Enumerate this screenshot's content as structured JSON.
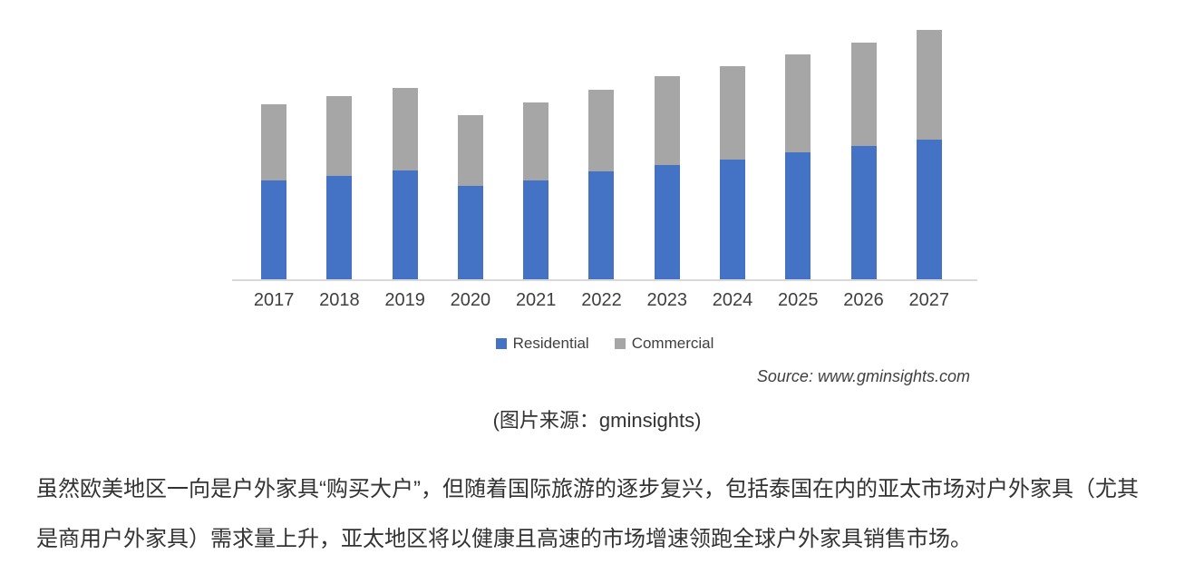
{
  "page": {
    "background": "#ffffff",
    "caption": "(图片来源：gminsights)",
    "paragraph": "虽然欧美地区一向是户外家具“购买大户”，但随着国际旅游的逐步复兴，包括泰国在内的亚太市场对户外家具（尤其是商用户外家具）需求量上升，亚太地区将以健康且高速的市场增速领跑全球户外家具销售市场。"
  },
  "chart": {
    "source_text": "Source: www.gminsights.com",
    "axis_line_color": "#d9d9d9",
    "label_color": "#3f3f3f"
  },
  "chart_data": {
    "type": "bar",
    "stacked": true,
    "title": "",
    "xlabel": "",
    "ylabel": "",
    "value_axis_visible": false,
    "units": "relative units (no value axis shown; values estimated from bar heights in pixels)",
    "legend_position": "bottom",
    "grid": false,
    "categories": [
      "2017",
      "2018",
      "2019",
      "2020",
      "2021",
      "2022",
      "2023",
      "2024",
      "2025",
      "2026",
      "2027"
    ],
    "series": [
      {
        "name": "Residential",
        "color": "#4472c4",
        "values": [
          106,
          111,
          117,
          100,
          106,
          116,
          123,
          129,
          136,
          143,
          150
        ]
      },
      {
        "name": "Commercial",
        "color": "#a6a6a6",
        "values": [
          82,
          86,
          89,
          76,
          84,
          88,
          95,
          100,
          106,
          111,
          118
        ]
      }
    ],
    "totals": [
      188,
      197,
      206,
      176,
      190,
      204,
      218,
      229,
      242,
      254,
      268
    ],
    "source": "Source: www.gminsights.com"
  }
}
